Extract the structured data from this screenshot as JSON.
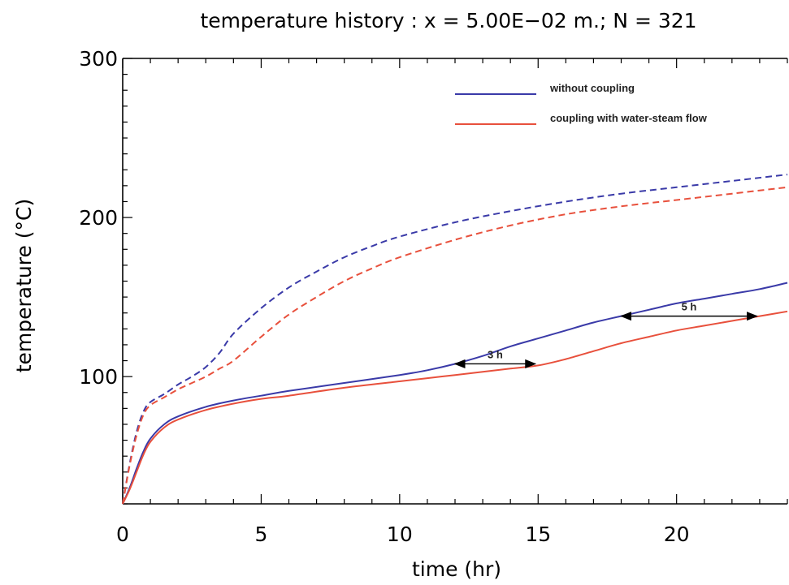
{
  "chart_data": {
    "type": "line",
    "title": "temperature history :  x = 5.00E−02 m.; N = 321",
    "xlabel": "time (hr)",
    "ylabel": "temperature (°C)",
    "xlim": [
      0,
      24
    ],
    "ylim": [
      20,
      300
    ],
    "xticks": [
      0,
      5,
      10,
      15,
      20
    ],
    "yticks": [
      100,
      200,
      300
    ],
    "grid": false,
    "legend_position": "top-right",
    "series": [
      {
        "name": "without coupling",
        "color": "#3a3aa8",
        "dash": "solid",
        "x": [
          0,
          0.25,
          0.5,
          0.75,
          1,
          1.5,
          2,
          3,
          4,
          5,
          6,
          8,
          10,
          11,
          12,
          13,
          14,
          15,
          16,
          17,
          18,
          19,
          20,
          21,
          22,
          23,
          24
        ],
        "y": [
          20,
          30,
          42,
          53,
          61,
          70,
          75,
          81,
          85,
          88,
          91,
          96,
          101,
          104,
          108,
          113,
          119,
          124,
          129,
          134,
          138,
          142,
          146,
          149,
          152,
          155,
          159
        ]
      },
      {
        "name": "coupling with water-steam flow",
        "color": "#e8503c",
        "dash": "solid",
        "x": [
          0,
          0.25,
          0.5,
          0.75,
          1,
          1.5,
          2,
          3,
          4,
          5,
          6,
          8,
          10,
          11,
          12,
          13,
          14,
          15,
          16,
          17,
          18,
          19,
          20,
          21,
          22,
          23,
          24
        ],
        "y": [
          20,
          29,
          40,
          51,
          59,
          68,
          73,
          79,
          83,
          86,
          88,
          93,
          97,
          99,
          101,
          103,
          105,
          107,
          111,
          116,
          121,
          125,
          129,
          132,
          135,
          138,
          141
        ]
      },
      {
        "name": "",
        "color": "#3a3aa8",
        "dash": "dashed",
        "x": [
          0,
          0.25,
          0.5,
          0.75,
          1,
          1.5,
          2,
          2.5,
          3,
          3.5,
          4,
          5,
          6,
          7,
          8,
          9,
          10,
          12,
          14,
          16,
          18,
          20,
          22,
          24
        ],
        "y": [
          20,
          45,
          65,
          78,
          84,
          89,
          95,
          100,
          106,
          115,
          127,
          143,
          156,
          166,
          175,
          182,
          188,
          197,
          204,
          210,
          215,
          219,
          223,
          227
        ]
      },
      {
        "name": "",
        "color": "#e8503c",
        "dash": "dashed",
        "x": [
          0,
          0.25,
          0.5,
          0.75,
          1,
          1.5,
          2,
          2.5,
          3,
          3.5,
          4,
          5,
          6,
          7,
          8,
          9,
          10,
          12,
          14,
          16,
          18,
          20,
          22,
          24
        ],
        "y": [
          20,
          44,
          63,
          76,
          82,
          87,
          92,
          96,
          100,
          105,
          110,
          125,
          139,
          150,
          160,
          168,
          175,
          186,
          195,
          202,
          207,
          211,
          215,
          219
        ]
      }
    ],
    "annotations": [
      {
        "label": "3 h",
        "x_start": 12,
        "x_end": 14.9,
        "y": 108
      },
      {
        "label": "5 h",
        "x_start": 18,
        "x_end": 22.9,
        "y": 138
      }
    ]
  }
}
